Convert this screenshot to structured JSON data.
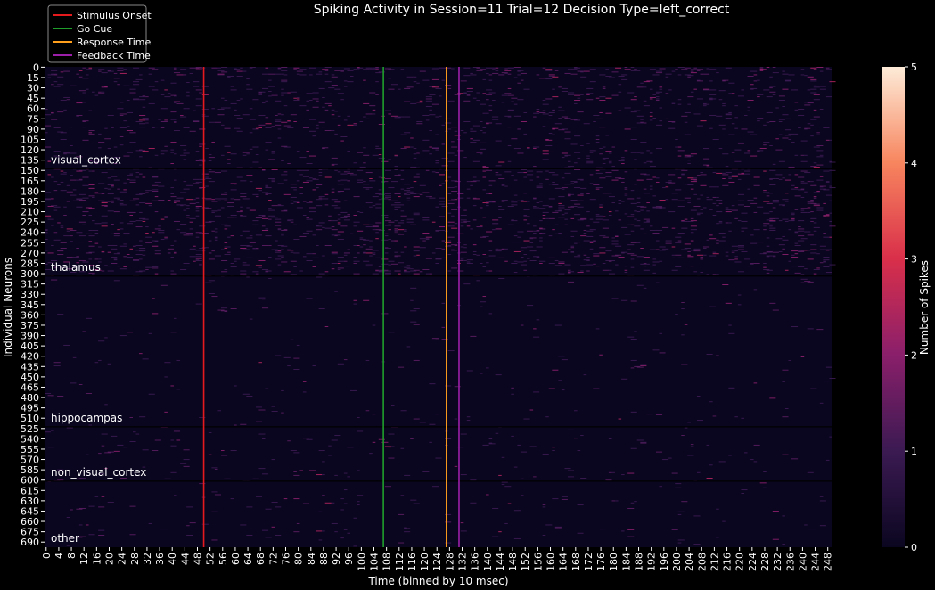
{
  "chart_data": {
    "type": "heatmap",
    "title": "Spiking Activity in Session=11  Trial=12  Decision Type=left_correct",
    "xlabel": "Time (binned by 10 msec)",
    "ylabel": "Individual Neurons",
    "n_time_bins": 250,
    "n_neurons": 698,
    "x_tick_step": 4,
    "x_tick_last": 248,
    "y_tick_step": 15,
    "y_tick_last": 690,
    "colorbar": {
      "label": "Number of Spikes",
      "min": 0,
      "max": 5,
      "ticks": [
        "0",
        "1",
        "2",
        "3",
        "4",
        "5"
      ],
      "colors": [
        "#0b0620",
        "#3b1a52",
        "#8a1f6b",
        "#d92f4a",
        "#f7855e",
        "#fdebd8"
      ]
    },
    "events": [
      {
        "name": "Stimulus Onset",
        "time_bin": 50,
        "color": "#e41a1c"
      },
      {
        "name": "Go Cue",
        "time_bin": 107,
        "color": "#1f9e2b"
      },
      {
        "name": "Response Time",
        "time_bin": 127,
        "color": "#ff9f1c"
      },
      {
        "name": "Feedback Time",
        "time_bin": 131,
        "color": "#9b1fa8"
      }
    ],
    "regions": [
      {
        "name": "visual_cortex",
        "start": 0,
        "end": 148
      },
      {
        "name": "thalamus",
        "start": 148,
        "end": 304
      },
      {
        "name": "hippocampas",
        "start": 304,
        "end": 523
      },
      {
        "name": "non_visual_cortex",
        "start": 523,
        "end": 602
      },
      {
        "name": "other",
        "start": 602,
        "end": 698
      }
    ],
    "legend_placement": "top-left outside"
  }
}
